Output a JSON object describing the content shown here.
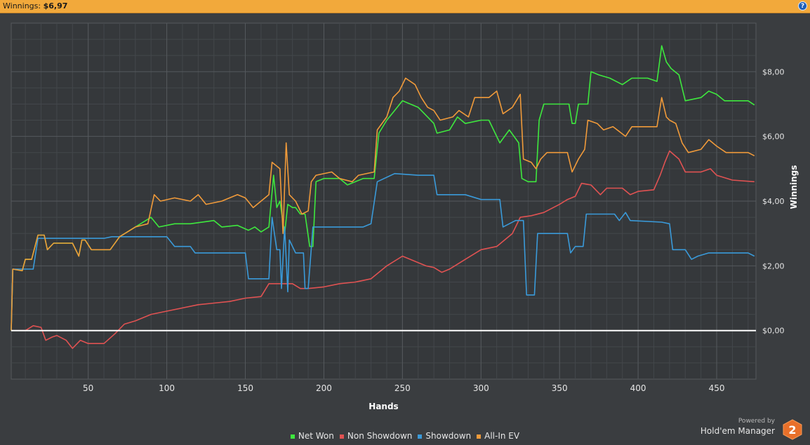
{
  "header": {
    "label": "Winnings:",
    "value": "$6,97"
  },
  "brand": {
    "powered": "Powered by",
    "product": "Hold'em Manager",
    "badge": "2"
  },
  "chart_data": {
    "type": "line",
    "xlabel": "Hands",
    "ylabel": "Winnings",
    "xlim": [
      1,
      475
    ],
    "ylim": [
      -1.5,
      9.5
    ],
    "xticks": [
      50,
      100,
      150,
      200,
      250,
      300,
      350,
      400,
      450
    ],
    "yticks": [
      0,
      2,
      4,
      6,
      8
    ],
    "ytick_labels": [
      "$0,00",
      "$2,00",
      "$4,00",
      "$6,00",
      "$8,00"
    ],
    "grid": true,
    "legend_position": "bottom",
    "series": [
      {
        "name": "Net Won",
        "color": "#3ee83e",
        "points": [
          [
            1,
            0
          ],
          [
            2,
            1.9
          ],
          [
            8,
            1.85
          ],
          [
            10,
            2.2
          ],
          [
            14,
            2.2
          ],
          [
            18,
            2.95
          ],
          [
            22,
            2.95
          ],
          [
            24,
            2.5
          ],
          [
            28,
            2.7
          ],
          [
            40,
            2.7
          ],
          [
            44,
            2.3
          ],
          [
            46,
            2.8
          ],
          [
            48,
            2.8
          ],
          [
            52,
            2.5
          ],
          [
            64,
            2.5
          ],
          [
            70,
            2.9
          ],
          [
            80,
            3.2
          ],
          [
            90,
            3.5
          ],
          [
            95,
            3.2
          ],
          [
            105,
            3.3
          ],
          [
            115,
            3.3
          ],
          [
            130,
            3.4
          ],
          [
            135,
            3.2
          ],
          [
            145,
            3.25
          ],
          [
            152,
            3.1
          ],
          [
            156,
            3.2
          ],
          [
            160,
            3.05
          ],
          [
            165,
            3.2
          ],
          [
            168,
            4.8
          ],
          [
            170,
            3.8
          ],
          [
            172,
            4
          ],
          [
            175,
            3
          ],
          [
            177,
            3.9
          ],
          [
            180,
            3.8
          ],
          [
            182,
            3.8
          ],
          [
            185,
            3.6
          ],
          [
            188,
            3.6
          ],
          [
            191,
            2.6
          ],
          [
            193,
            2.6
          ],
          [
            195,
            4.6
          ],
          [
            200,
            4.7
          ],
          [
            210,
            4.7
          ],
          [
            215,
            4.5
          ],
          [
            225,
            4.7
          ],
          [
            232,
            4.7
          ],
          [
            235,
            6.1
          ],
          [
            240,
            6.5
          ],
          [
            245,
            6.8
          ],
          [
            250,
            7.1
          ],
          [
            255,
            7.0
          ],
          [
            260,
            6.9
          ],
          [
            266,
            6.6
          ],
          [
            270,
            6.4
          ],
          [
            272,
            6.1
          ],
          [
            280,
            6.2
          ],
          [
            285,
            6.6
          ],
          [
            290,
            6.4
          ],
          [
            300,
            6.5
          ],
          [
            305,
            6.5
          ],
          [
            312,
            5.8
          ],
          [
            318,
            6.2
          ],
          [
            324,
            5.8
          ],
          [
            326,
            4.7
          ],
          [
            330,
            4.6
          ],
          [
            335,
            4.6
          ],
          [
            337,
            6.5
          ],
          [
            340,
            7.0
          ],
          [
            356,
            7.0
          ],
          [
            358,
            6.4
          ],
          [
            360,
            6.4
          ],
          [
            362,
            7.0
          ],
          [
            368,
            7.0
          ],
          [
            370,
            8.0
          ],
          [
            375,
            7.9
          ],
          [
            382,
            7.8
          ],
          [
            390,
            7.6
          ],
          [
            396,
            7.8
          ],
          [
            406,
            7.8
          ],
          [
            412,
            7.7
          ],
          [
            415,
            8.8
          ],
          [
            418,
            8.3
          ],
          [
            421,
            8.1
          ],
          [
            426,
            7.9
          ],
          [
            430,
            7.1
          ],
          [
            440,
            7.2
          ],
          [
            445,
            7.4
          ],
          [
            450,
            7.3
          ],
          [
            455,
            7.1
          ],
          [
            470,
            7.1
          ],
          [
            474,
            6.97
          ]
        ]
      },
      {
        "name": "Non Showdown",
        "color": "#e05252",
        "points": [
          [
            1,
            0
          ],
          [
            10,
            0
          ],
          [
            15,
            0.15
          ],
          [
            20,
            0.1
          ],
          [
            23,
            -0.3
          ],
          [
            27,
            -0.2
          ],
          [
            30,
            -0.15
          ],
          [
            36,
            -0.3
          ],
          [
            40,
            -0.55
          ],
          [
            45,
            -0.3
          ],
          [
            50,
            -0.4
          ],
          [
            60,
            -0.4
          ],
          [
            67,
            -0.1
          ],
          [
            73,
            0.2
          ],
          [
            80,
            0.3
          ],
          [
            90,
            0.5
          ],
          [
            100,
            0.6
          ],
          [
            110,
            0.7
          ],
          [
            120,
            0.8
          ],
          [
            130,
            0.85
          ],
          [
            140,
            0.9
          ],
          [
            150,
            1.0
          ],
          [
            160,
            1.05
          ],
          [
            165,
            1.45
          ],
          [
            180,
            1.45
          ],
          [
            185,
            1.3
          ],
          [
            190,
            1.3
          ],
          [
            200,
            1.35
          ],
          [
            210,
            1.45
          ],
          [
            220,
            1.5
          ],
          [
            230,
            1.6
          ],
          [
            240,
            2.0
          ],
          [
            250,
            2.3
          ],
          [
            260,
            2.1
          ],
          [
            265,
            2.0
          ],
          [
            270,
            1.95
          ],
          [
            275,
            1.8
          ],
          [
            280,
            1.9
          ],
          [
            290,
            2.2
          ],
          [
            300,
            2.5
          ],
          [
            310,
            2.6
          ],
          [
            320,
            3.0
          ],
          [
            325,
            3.5
          ],
          [
            332,
            3.55
          ],
          [
            340,
            3.65
          ],
          [
            350,
            3.9
          ],
          [
            355,
            4.05
          ],
          [
            360,
            4.15
          ],
          [
            364,
            4.55
          ],
          [
            370,
            4.5
          ],
          [
            376,
            4.2
          ],
          [
            380,
            4.4
          ],
          [
            390,
            4.4
          ],
          [
            395,
            4.2
          ],
          [
            400,
            4.3
          ],
          [
            410,
            4.35
          ],
          [
            414,
            4.8
          ],
          [
            417,
            5.2
          ],
          [
            420,
            5.55
          ],
          [
            426,
            5.3
          ],
          [
            430,
            4.9
          ],
          [
            440,
            4.9
          ],
          [
            446,
            5.0
          ],
          [
            450,
            4.8
          ],
          [
            460,
            4.65
          ],
          [
            474,
            4.6
          ]
        ]
      },
      {
        "name": "Showdown",
        "color": "#3a9ad9",
        "points": [
          [
            1,
            0
          ],
          [
            2,
            1.9
          ],
          [
            15,
            1.9
          ],
          [
            18,
            2.85
          ],
          [
            60,
            2.85
          ],
          [
            65,
            2.9
          ],
          [
            100,
            2.9
          ],
          [
            105,
            2.6
          ],
          [
            115,
            2.6
          ],
          [
            118,
            2.4
          ],
          [
            150,
            2.4
          ],
          [
            152,
            1.6
          ],
          [
            165,
            1.6
          ],
          [
            167,
            3.5
          ],
          [
            170,
            2.5
          ],
          [
            172,
            2.5
          ],
          [
            173,
            1.3
          ],
          [
            175,
            3.2
          ],
          [
            177,
            1.2
          ],
          [
            178,
            2.8
          ],
          [
            182,
            2.4
          ],
          [
            187,
            2.4
          ],
          [
            188,
            1.3
          ],
          [
            190,
            1.3
          ],
          [
            193,
            3.2
          ],
          [
            200,
            3.2
          ],
          [
            225,
            3.2
          ],
          [
            230,
            3.3
          ],
          [
            234,
            4.6
          ],
          [
            245,
            4.85
          ],
          [
            260,
            4.8
          ],
          [
            270,
            4.8
          ],
          [
            272,
            4.2
          ],
          [
            290,
            4.2
          ],
          [
            300,
            4.05
          ],
          [
            312,
            4.05
          ],
          [
            314,
            3.2
          ],
          [
            322,
            3.4
          ],
          [
            327,
            3.4
          ],
          [
            329,
            1.1
          ],
          [
            334,
            1.1
          ],
          [
            336,
            3.0
          ],
          [
            355,
            3.0
          ],
          [
            357,
            2.4
          ],
          [
            360,
            2.6
          ],
          [
            365,
            2.6
          ],
          [
            367,
            3.6
          ],
          [
            385,
            3.6
          ],
          [
            388,
            3.4
          ],
          [
            392,
            3.65
          ],
          [
            395,
            3.4
          ],
          [
            415,
            3.35
          ],
          [
            420,
            3.3
          ],
          [
            422,
            2.5
          ],
          [
            430,
            2.5
          ],
          [
            434,
            2.2
          ],
          [
            438,
            2.3
          ],
          [
            445,
            2.4
          ],
          [
            470,
            2.4
          ],
          [
            474,
            2.3
          ]
        ]
      },
      {
        "name": "All-In EV",
        "color": "#f09a3a",
        "points": [
          [
            1,
            0
          ],
          [
            2,
            1.9
          ],
          [
            8,
            1.85
          ],
          [
            10,
            2.2
          ],
          [
            14,
            2.2
          ],
          [
            18,
            2.95
          ],
          [
            22,
            2.95
          ],
          [
            24,
            2.5
          ],
          [
            28,
            2.7
          ],
          [
            40,
            2.7
          ],
          [
            44,
            2.3
          ],
          [
            46,
            2.8
          ],
          [
            48,
            2.8
          ],
          [
            52,
            2.5
          ],
          [
            64,
            2.5
          ],
          [
            70,
            2.9
          ],
          [
            80,
            3.2
          ],
          [
            88,
            3.3
          ],
          [
            92,
            4.2
          ],
          [
            96,
            4.0
          ],
          [
            105,
            4.1
          ],
          [
            115,
            4.0
          ],
          [
            120,
            4.2
          ],
          [
            125,
            3.9
          ],
          [
            135,
            4.0
          ],
          [
            145,
            4.2
          ],
          [
            150,
            4.1
          ],
          [
            155,
            3.8
          ],
          [
            160,
            4.0
          ],
          [
            165,
            4.2
          ],
          [
            167,
            5.2
          ],
          [
            172,
            5.0
          ],
          [
            174,
            3.0
          ],
          [
            176,
            5.8
          ],
          [
            178,
            4.2
          ],
          [
            182,
            4.0
          ],
          [
            186,
            3.6
          ],
          [
            190,
            3.7
          ],
          [
            192,
            4.6
          ],
          [
            195,
            4.8
          ],
          [
            205,
            4.9
          ],
          [
            210,
            4.7
          ],
          [
            218,
            4.6
          ],
          [
            222,
            4.8
          ],
          [
            232,
            4.9
          ],
          [
            234,
            6.2
          ],
          [
            240,
            6.6
          ],
          [
            244,
            7.2
          ],
          [
            248,
            7.4
          ],
          [
            252,
            7.8
          ],
          [
            258,
            7.6
          ],
          [
            262,
            7.2
          ],
          [
            266,
            6.9
          ],
          [
            270,
            6.8
          ],
          [
            274,
            6.5
          ],
          [
            282,
            6.6
          ],
          [
            286,
            6.8
          ],
          [
            292,
            6.6
          ],
          [
            296,
            7.2
          ],
          [
            305,
            7.2
          ],
          [
            310,
            7.4
          ],
          [
            314,
            6.7
          ],
          [
            320,
            6.9
          ],
          [
            325,
            7.3
          ],
          [
            327,
            5.3
          ],
          [
            332,
            5.2
          ],
          [
            335,
            5.0
          ],
          [
            338,
            5.3
          ],
          [
            342,
            5.5
          ],
          [
            355,
            5.5
          ],
          [
            358,
            4.9
          ],
          [
            362,
            5.3
          ],
          [
            366,
            5.6
          ],
          [
            368,
            6.5
          ],
          [
            374,
            6.4
          ],
          [
            378,
            6.2
          ],
          [
            384,
            6.3
          ],
          [
            392,
            6.0
          ],
          [
            396,
            6.3
          ],
          [
            406,
            6.3
          ],
          [
            412,
            6.3
          ],
          [
            415,
            7.2
          ],
          [
            418,
            6.6
          ],
          [
            420,
            6.5
          ],
          [
            424,
            6.4
          ],
          [
            428,
            5.8
          ],
          [
            432,
            5.5
          ],
          [
            440,
            5.6
          ],
          [
            445,
            5.9
          ],
          [
            450,
            5.7
          ],
          [
            456,
            5.5
          ],
          [
            470,
            5.5
          ],
          [
            474,
            5.4
          ]
        ]
      }
    ]
  }
}
